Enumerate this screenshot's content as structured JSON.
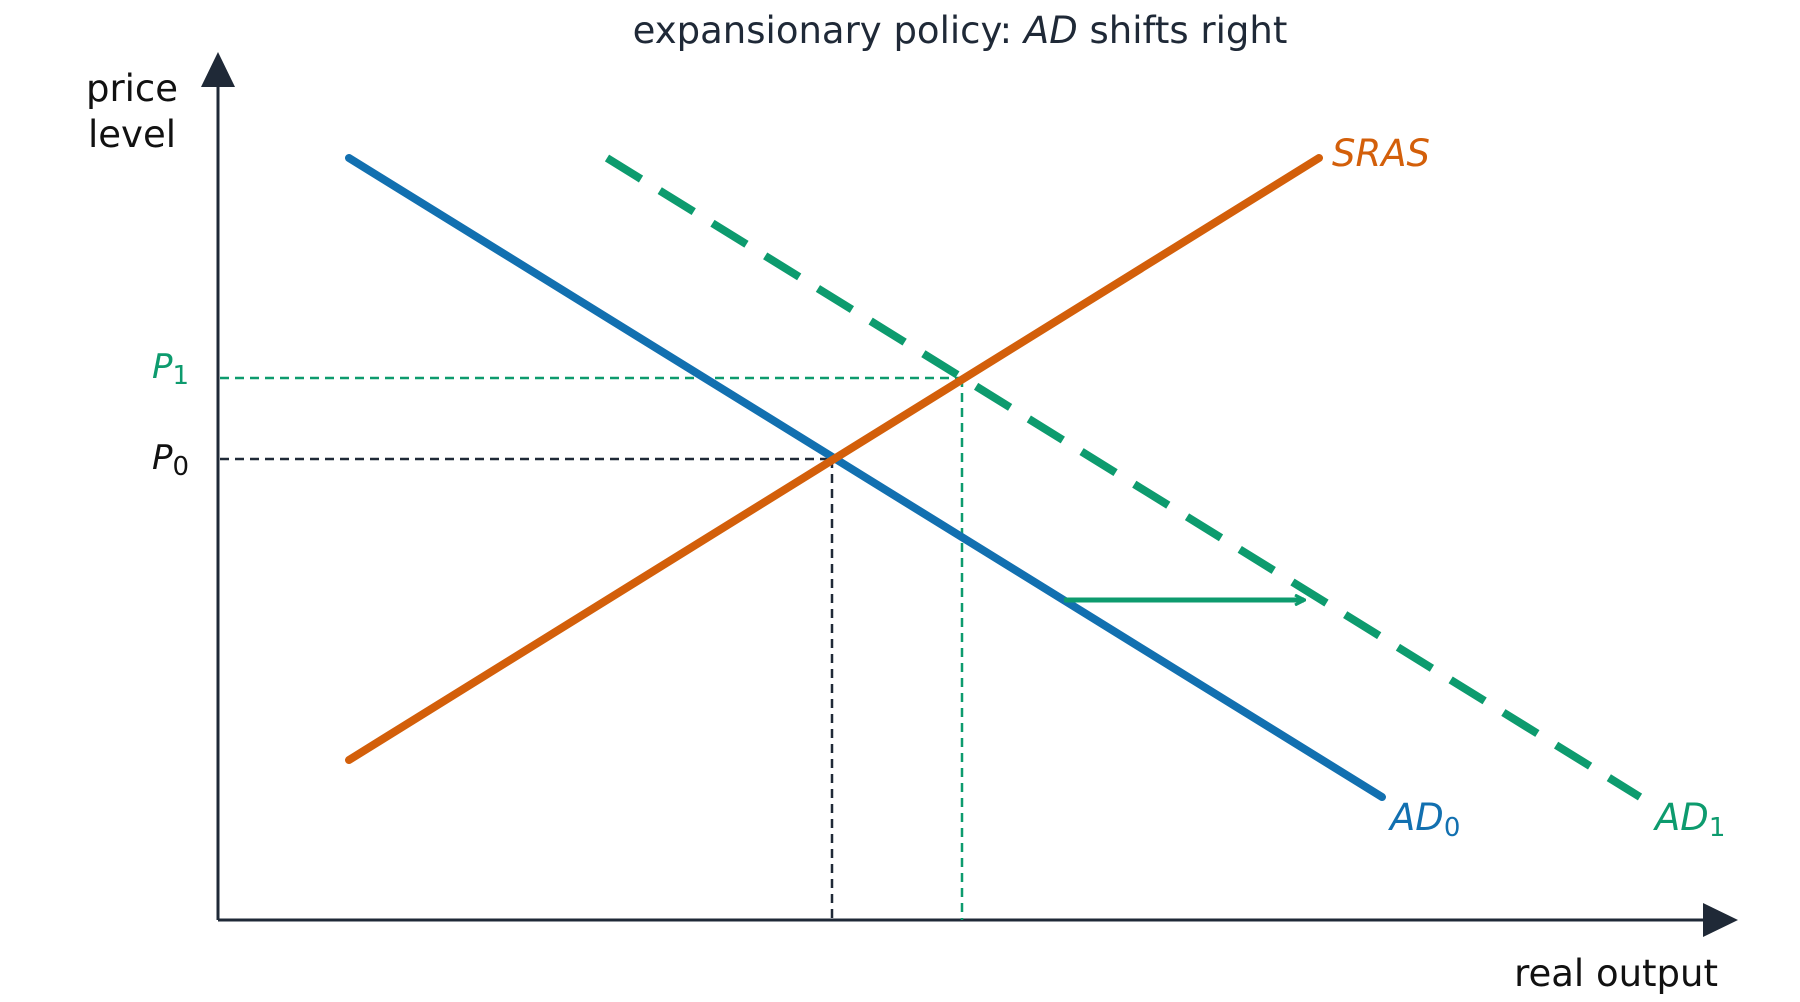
{
  "title": {
    "prefix": "expansionary policy: ",
    "emph": "AD",
    "suffix": " shifts right"
  },
  "axes": {
    "y_label_line1": "price",
    "y_label_line2": "level",
    "x_label": "real output"
  },
  "curves": {
    "sras": {
      "label": "SRAS",
      "color": "#d35f0a"
    },
    "ad0": {
      "label": "AD",
      "sub": "0",
      "color": "#1270b0"
    },
    "ad1": {
      "label": "AD",
      "sub": "1",
      "color": "#0d9b6e",
      "style": "dashed"
    }
  },
  "price_ticks": {
    "p0": {
      "label": "P",
      "sub": "0",
      "color": "#111111"
    },
    "p1": {
      "label": "P",
      "sub": "1",
      "color": "#0d9b6e"
    }
  },
  "shift_arrow": {
    "color": "#0d9b6e",
    "direction": "right"
  },
  "colors": {
    "axis": "#1f2937",
    "guide_initial": "#1f2937",
    "guide_new": "#0d9b6e"
  }
}
